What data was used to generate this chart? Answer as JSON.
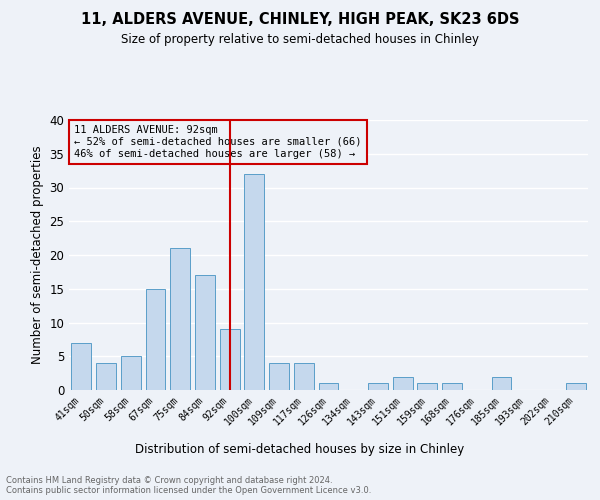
{
  "title1": "11, ALDERS AVENUE, CHINLEY, HIGH PEAK, SK23 6DS",
  "title2": "Size of property relative to semi-detached houses in Chinley",
  "xlabel": "Distribution of semi-detached houses by size in Chinley",
  "ylabel": "Number of semi-detached properties",
  "categories": [
    "41sqm",
    "50sqm",
    "58sqm",
    "67sqm",
    "75sqm",
    "84sqm",
    "92sqm",
    "100sqm",
    "109sqm",
    "117sqm",
    "126sqm",
    "134sqm",
    "143sqm",
    "151sqm",
    "159sqm",
    "168sqm",
    "176sqm",
    "185sqm",
    "193sqm",
    "202sqm",
    "210sqm"
  ],
  "values": [
    7,
    4,
    5,
    15,
    21,
    17,
    9,
    32,
    4,
    4,
    1,
    0,
    1,
    2,
    1,
    1,
    0,
    2,
    0,
    0,
    1
  ],
  "highlight_index": 6,
  "bar_color": "#c5d8ed",
  "bar_edge_color": "#5a9ec9",
  "highlight_line_color": "#cc0000",
  "annotation_box_edge": "#cc0000",
  "annotation_text_line1": "11 ALDERS AVENUE: 92sqm",
  "annotation_text_line2": "← 52% of semi-detached houses are smaller (66)",
  "annotation_text_line3": "46% of semi-detached houses are larger (58) →",
  "ylim": [
    0,
    40
  ],
  "yticks": [
    0,
    5,
    10,
    15,
    20,
    25,
    30,
    35,
    40
  ],
  "footer_line1": "Contains HM Land Registry data © Crown copyright and database right 2024.",
  "footer_line2": "Contains public sector information licensed under the Open Government Licence v3.0.",
  "bg_color": "#eef2f8",
  "grid_color": "#ffffff"
}
